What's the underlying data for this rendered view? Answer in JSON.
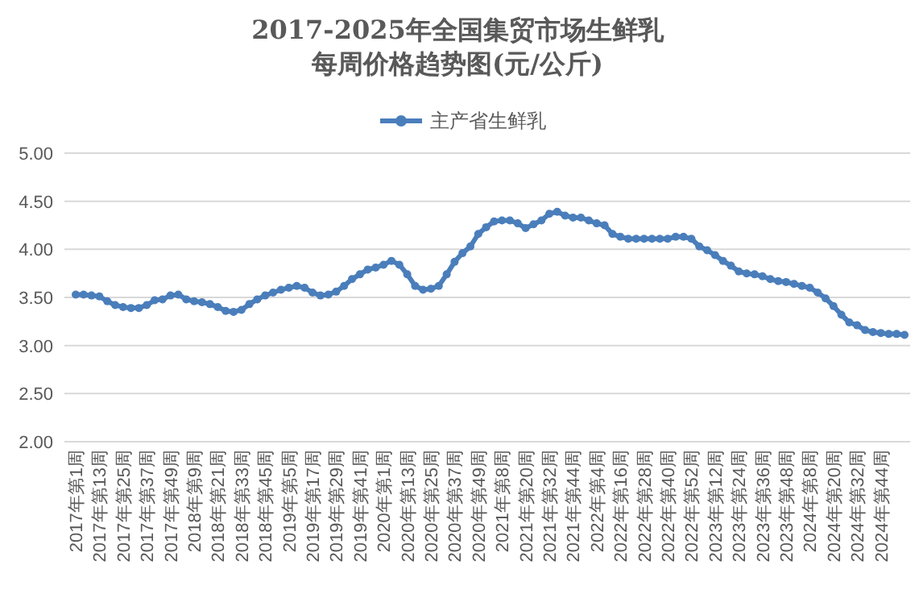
{
  "chart_data": {
    "type": "line",
    "title": "2017-2025年全国集贸市场生鲜乳每周价格趋势图(元/公斤)",
    "categories": [
      "2017年第1周",
      null,
      null,
      "2017年第13周",
      null,
      null,
      "2017年第25周",
      null,
      null,
      "2017年第37周",
      null,
      null,
      "2017年第49周",
      null,
      null,
      "2018年第9周",
      null,
      null,
      "2018年第21周",
      null,
      null,
      "2018年第33周",
      null,
      null,
      "2018年第45周",
      null,
      null,
      "2019年第5周",
      null,
      null,
      "2019年第17周",
      null,
      null,
      "2019年第29周",
      null,
      null,
      "2019年第41周",
      null,
      null,
      "2020年第1周",
      null,
      null,
      "2020年第13周",
      null,
      null,
      "2020年第25周",
      null,
      null,
      "2020年第37周",
      null,
      null,
      "2020年第49周",
      null,
      null,
      "2021年第8周",
      null,
      null,
      "2021年第20周",
      null,
      null,
      "2021年第32周",
      null,
      null,
      "2021年第44周",
      null,
      null,
      "2022年第4周",
      null,
      null,
      "2022年第16周",
      null,
      null,
      "2022年第28周",
      null,
      null,
      "2022年第40周",
      null,
      null,
      "2022年第52周",
      null,
      null,
      "2023年第12周",
      null,
      null,
      "2023年第24周",
      null,
      null,
      "2023年第36周",
      null,
      null,
      "2023年第48周",
      null,
      null,
      "2024年第8周",
      null,
      null,
      "2024年第20周",
      null,
      null,
      "2024年第32周",
      null,
      null,
      "2024年第44周",
      null,
      null,
      null
    ],
    "series": [
      {
        "name": "主产省生鲜乳",
        "color": "#4a7ebb",
        "values": [
          3.53,
          3.53,
          3.52,
          3.51,
          3.46,
          3.42,
          3.4,
          3.39,
          3.39,
          3.42,
          3.47,
          3.48,
          3.52,
          3.53,
          3.48,
          3.46,
          3.45,
          3.43,
          3.4,
          3.36,
          3.35,
          3.37,
          3.43,
          3.48,
          3.52,
          3.55,
          3.58,
          3.6,
          3.62,
          3.6,
          3.55,
          3.52,
          3.53,
          3.56,
          3.62,
          3.69,
          3.74,
          3.79,
          3.81,
          3.84,
          3.88,
          3.84,
          3.74,
          3.62,
          3.58,
          3.59,
          3.62,
          3.74,
          3.87,
          3.96,
          4.03,
          4.16,
          4.23,
          4.29,
          4.3,
          4.3,
          4.27,
          4.22,
          4.26,
          4.3,
          4.37,
          4.39,
          4.35,
          4.33,
          4.33,
          4.3,
          4.27,
          4.25,
          4.16,
          4.13,
          4.11,
          4.11,
          4.11,
          4.11,
          4.11,
          4.11,
          4.13,
          4.13,
          4.11,
          4.03,
          3.99,
          3.94,
          3.88,
          3.83,
          3.77,
          3.75,
          3.74,
          3.72,
          3.69,
          3.67,
          3.66,
          3.64,
          3.62,
          3.6,
          3.55,
          3.49,
          3.41,
          3.32,
          3.24,
          3.21,
          3.16,
          3.14,
          3.13,
          3.12,
          3.12,
          3.11
        ]
      }
    ],
    "ylim": [
      2,
      5
    ],
    "yticks": [
      {
        "value": 2,
        "label": "2.00"
      },
      {
        "value": 2.5,
        "label": "2.50"
      },
      {
        "value": 3,
        "label": "3.00"
      },
      {
        "value": 3.5,
        "label": "3.50"
      },
      {
        "value": 4,
        "label": "4.00"
      },
      {
        "value": 4.5,
        "label": "4.50"
      },
      {
        "value": 5,
        "label": "5.00"
      }
    ],
    "grid": "y",
    "legend": "top",
    "marker": "circle",
    "line_style": "solid"
  }
}
